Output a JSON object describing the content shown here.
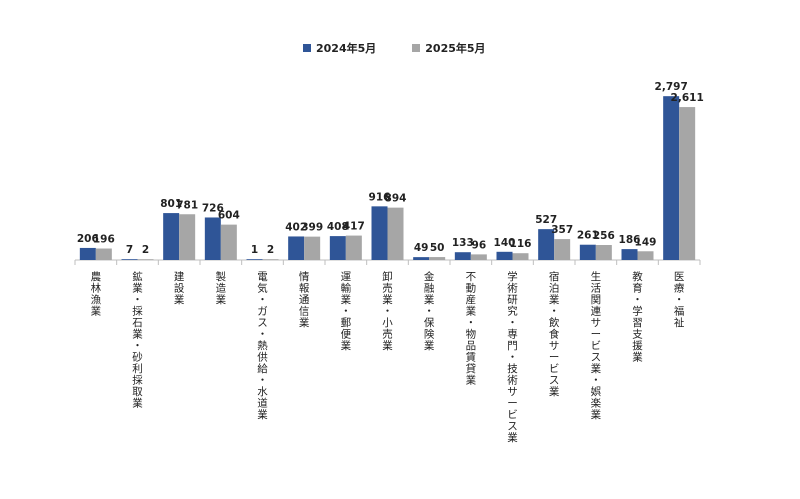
{
  "chart_data": {
    "type": "bar",
    "categories": [
      "農林漁業",
      "鉱業・採石業・砂利採取業",
      "建設業",
      "製造業",
      "電気・ガス・熱供給・水道業",
      "情報通信業",
      "運輸業・郵便業",
      "卸売業・小売業",
      "金融業・保険業",
      "不動産業・物品賃貸業",
      "学術研究・専門・技術サービス業",
      "宿泊業・飲食サービス業",
      "生活関連サービス業・娯楽業",
      "教育・学習支援業",
      "医療・福祉"
    ],
    "series": [
      {
        "name": "2024年5月",
        "color": "#2F5597",
        "values": [
          206,
          7,
          801,
          726,
          1,
          402,
          408,
          916,
          49,
          133,
          140,
          527,
          261,
          186,
          2797
        ],
        "labels": [
          "206",
          "7",
          "801",
          "726",
          "1",
          "402",
          "408",
          "916",
          "49",
          "133",
          "140",
          "527",
          "261",
          "186",
          "2,797"
        ]
      },
      {
        "name": "2025年5月",
        "color": "#A6A6A6",
        "values": [
          196,
          2,
          781,
          604,
          2,
          399,
          417,
          894,
          50,
          96,
          116,
          357,
          256,
          149,
          2611
        ],
        "labels": [
          "196",
          "2",
          "781",
          "604",
          "2",
          "399",
          "417",
          "894",
          "50",
          "96",
          "116",
          "357",
          "256",
          "149",
          "2,611"
        ]
      }
    ],
    "ylim": [
      0,
      2800
    ],
    "grid": false,
    "legend_position": "top-center"
  }
}
